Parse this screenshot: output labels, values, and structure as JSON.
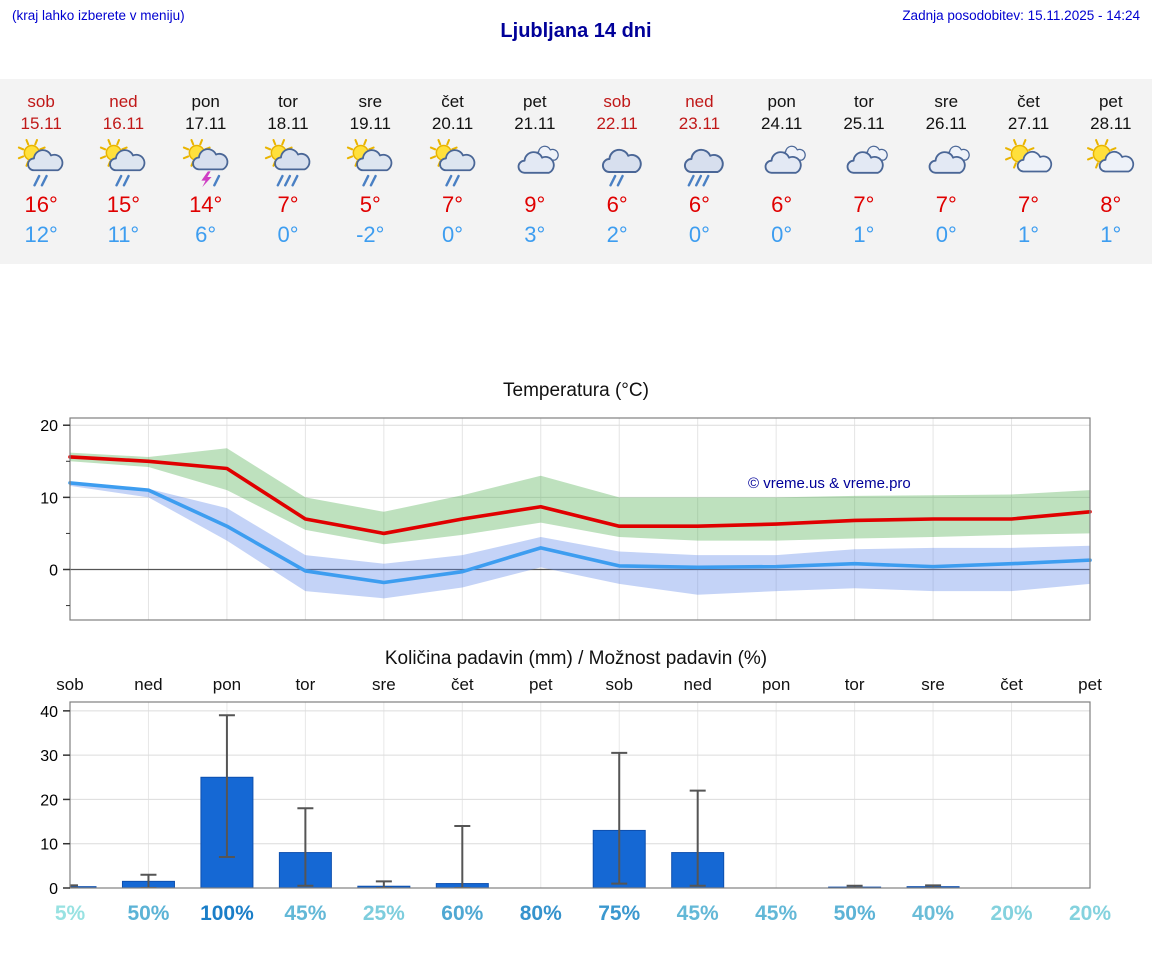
{
  "header": {
    "menu_hint": "(kraj lahko izberete v meniju)",
    "title": "Ljubljana 14 dni",
    "last_update": "Zadnja posodobitev: 15.11.2025 - 14:24"
  },
  "colors": {
    "header_blue": "#0000d0",
    "title_blue": "#000099",
    "weekend_red": "#c01818",
    "tmax_red": "#e00000",
    "tmin_blue": "#3d9df0",
    "strip_bg": "#f3f3f3",
    "bar_blue": "#1568d4",
    "bar_border": "#0d4fae",
    "whisker_gray": "#555555",
    "pct_low": "#98e2e2",
    "pct_high": "#1a7ec8",
    "watermark_blue": "#000099"
  },
  "forecast": {
    "days": [
      {
        "name": "sob",
        "date": "15.11",
        "weekend": true,
        "icon": "sun-cloud-rain",
        "tmax": "16°",
        "tmin": "12°"
      },
      {
        "name": "ned",
        "date": "16.11",
        "weekend": true,
        "icon": "sun-cloud-rain",
        "tmax": "15°",
        "tmin": "11°"
      },
      {
        "name": "pon",
        "date": "17.11",
        "weekend": false,
        "icon": "sun-cloud-storm",
        "tmax": "14°",
        "tmin": "6°"
      },
      {
        "name": "tor",
        "date": "18.11",
        "weekend": false,
        "icon": "sun-cloud-heavy-rain",
        "tmax": "7°",
        "tmin": "0°"
      },
      {
        "name": "sre",
        "date": "19.11",
        "weekend": false,
        "icon": "sun-cloud-rain",
        "tmax": "5°",
        "tmin": "-2°"
      },
      {
        "name": "čet",
        "date": "20.11",
        "weekend": false,
        "icon": "sun-cloud-rain",
        "tmax": "7°",
        "tmin": "0°"
      },
      {
        "name": "pet",
        "date": "21.11",
        "weekend": false,
        "icon": "cloudy",
        "tmax": "9°",
        "tmin": "3°"
      },
      {
        "name": "sob",
        "date": "22.11",
        "weekend": true,
        "icon": "cloud-rain",
        "tmax": "6°",
        "tmin": "2°"
      },
      {
        "name": "ned",
        "date": "23.11",
        "weekend": true,
        "icon": "cloud-heavy-rain",
        "tmax": "6°",
        "tmin": "0°"
      },
      {
        "name": "pon",
        "date": "24.11",
        "weekend": false,
        "icon": "cloudy",
        "tmax": "6°",
        "tmin": "0°"
      },
      {
        "name": "tor",
        "date": "25.11",
        "weekend": false,
        "icon": "cloudy",
        "tmax": "7°",
        "tmin": "1°"
      },
      {
        "name": "sre",
        "date": "26.11",
        "weekend": false,
        "icon": "cloudy",
        "tmax": "7°",
        "tmin": "0°"
      },
      {
        "name": "čet",
        "date": "27.11",
        "weekend": false,
        "icon": "sun-cloud",
        "tmax": "7°",
        "tmin": "1°"
      },
      {
        "name": "pet",
        "date": "28.11",
        "weekend": false,
        "icon": "sun-cloud",
        "tmax": "8°",
        "tmin": "1°"
      }
    ]
  },
  "chart_data": [
    {
      "type": "line",
      "title": "Temperatura (°C)",
      "watermark": "© vreme.us & vreme.pro",
      "x_labels": [
        "sob",
        "ned",
        "pon",
        "tor",
        "sre",
        "čet",
        "pet",
        "sob",
        "ned",
        "pon",
        "tor",
        "sre",
        "čet",
        "pet"
      ],
      "ylim": [
        -7,
        21
      ],
      "yticks": [
        0,
        10,
        20
      ],
      "minor_yticks": [
        -5,
        5,
        15
      ],
      "series": [
        {
          "name": "max-temp",
          "color": "#e00000",
          "values": [
            15.6,
            15,
            14,
            7,
            5,
            7,
            8.7,
            6,
            6,
            6.3,
            6.8,
            7,
            7,
            8
          ]
        },
        {
          "name": "min-temp",
          "color": "#3d9df0",
          "values": [
            12,
            11,
            6,
            -0.2,
            -1.8,
            -0.3,
            3,
            0.5,
            0.3,
            0.4,
            0.8,
            0.4,
            0.8,
            1.3
          ]
        }
      ],
      "bands": [
        {
          "name": "max-range",
          "color": "rgba(85,175,85,0.38)",
          "upper": [
            16.2,
            15.6,
            16.8,
            10,
            8,
            10.3,
            13,
            10,
            10,
            10,
            10.2,
            10.3,
            10.4,
            11
          ],
          "lower": [
            15,
            14.2,
            11,
            5.5,
            3.5,
            4.8,
            6.5,
            4.5,
            4,
            4,
            4.3,
            4.5,
            4.8,
            5
          ]
        },
        {
          "name": "min-range",
          "color": "rgba(100,140,235,0.38)",
          "upper": [
            12.2,
            11.2,
            8.5,
            2,
            0.8,
            2,
            4.5,
            2.5,
            2,
            2,
            2.8,
            3,
            3,
            3.3
          ],
          "lower": [
            11.6,
            10,
            4,
            -3,
            -4,
            -2.5,
            0.3,
            -2,
            -3.5,
            -3,
            -2.6,
            -3,
            -3,
            -2
          ]
        }
      ]
    },
    {
      "type": "bar",
      "title": "Količina padavin (mm) / Možnost padavin (%)",
      "categories": [
        "sob",
        "ned",
        "pon",
        "tor",
        "sre",
        "čet",
        "pet",
        "sob",
        "ned",
        "pon",
        "tor",
        "sre",
        "čet",
        "pet"
      ],
      "values": [
        0.3,
        1.5,
        25,
        8,
        0.4,
        1,
        0,
        13,
        8,
        0,
        0.2,
        0.3,
        0,
        0
      ],
      "whisker_min": [
        0,
        0,
        7,
        0.5,
        0,
        0,
        0,
        1,
        0.5,
        0,
        0,
        0,
        0,
        0
      ],
      "whisker_max": [
        0.6,
        3,
        39,
        18,
        1.5,
        14,
        0,
        30.5,
        22,
        0,
        0.5,
        0.6,
        0,
        0
      ],
      "percent": [
        5,
        50,
        100,
        45,
        25,
        60,
        80,
        75,
        45,
        45,
        50,
        40,
        20,
        20
      ],
      "ylim": [
        0,
        42
      ],
      "yticks": [
        0,
        10,
        20,
        30,
        40
      ]
    }
  ]
}
